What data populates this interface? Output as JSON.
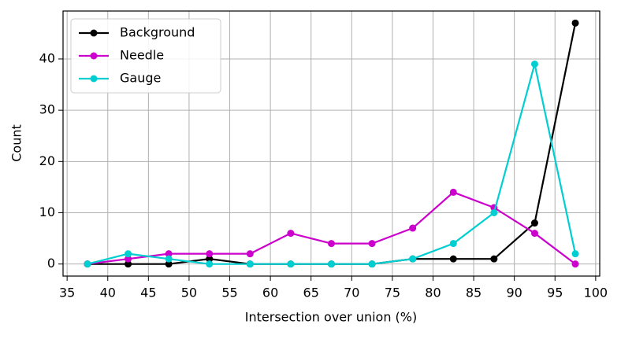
{
  "chart_data": {
    "type": "line",
    "xlabel": "Intersection over union (%)",
    "ylabel": "Count",
    "x": [
      37.5,
      42.5,
      47.5,
      52.5,
      57.5,
      62.5,
      67.5,
      72.5,
      77.5,
      82.5,
      87.5,
      92.5,
      97.5
    ],
    "series": [
      {
        "name": "Background",
        "color": "#000000",
        "values": [
          0,
          0,
          0,
          1,
          0,
          0,
          0,
          0,
          1,
          1,
          1,
          8,
          47
        ]
      },
      {
        "name": "Needle",
        "color": "#cc00cc",
        "values": [
          0,
          1,
          2,
          2,
          2,
          6,
          4,
          4,
          7,
          14,
          11,
          6,
          0
        ]
      },
      {
        "name": "Gauge",
        "color": "#00ced1",
        "values": [
          0,
          2,
          1,
          0,
          0,
          0,
          0,
          0,
          1,
          4,
          10,
          39,
          2
        ]
      }
    ],
    "xlim": [
      34.5,
      100.5
    ],
    "ylim": [
      -2.35,
      49.35
    ],
    "xticks": [
      35,
      40,
      45,
      50,
      55,
      60,
      65,
      70,
      75,
      80,
      85,
      90,
      95,
      100
    ],
    "yticks": [
      0,
      10,
      20,
      30,
      40
    ],
    "grid": true,
    "legend": "upper left"
  }
}
